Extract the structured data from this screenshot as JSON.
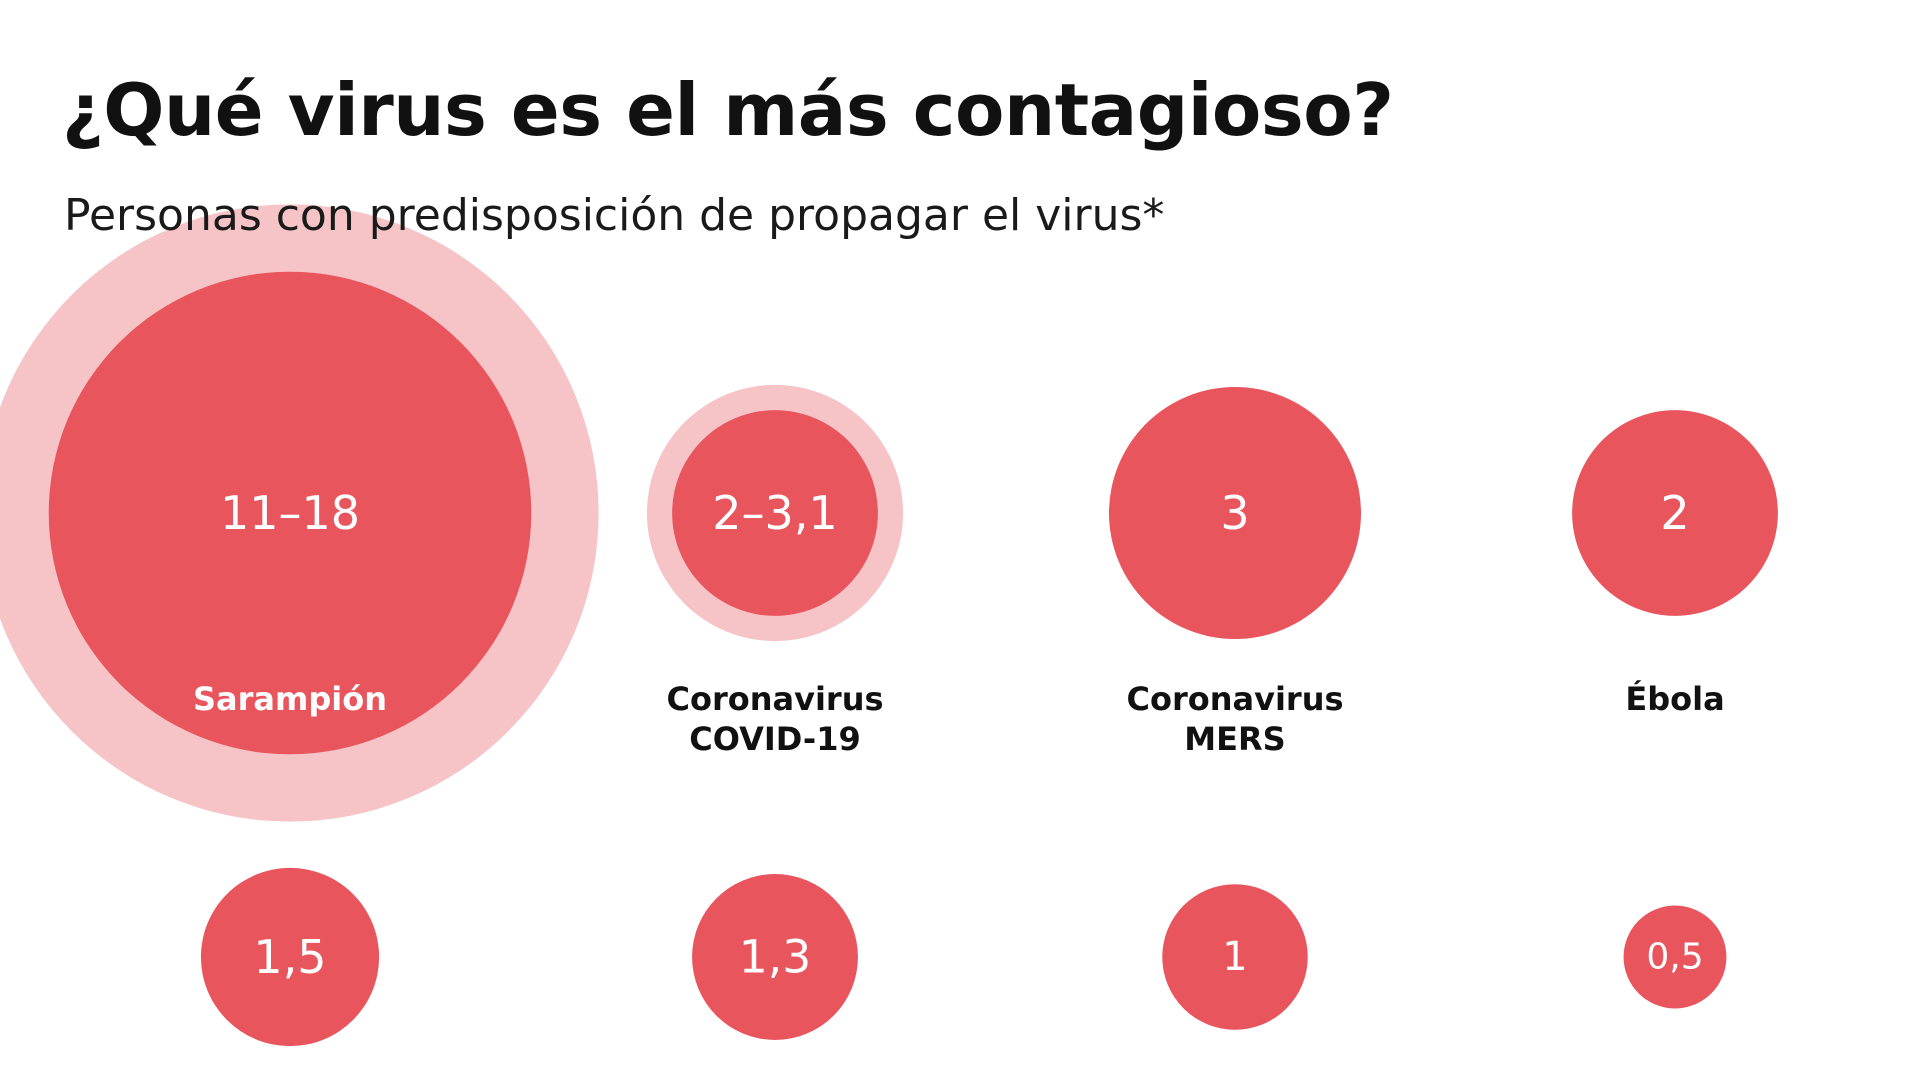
{
  "title": "¿Qué virus es el más contagioso?",
  "subtitle": "Personas con predisposición de propagar el virus*",
  "colors": {
    "bubble": "#e8555c",
    "range_halo": "#f6c4c6",
    "value_text": "#ffffff",
    "label_text": "#111111"
  },
  "chart_data": {
    "type": "bubble",
    "title": "¿Qué virus es el más contagioso?",
    "subtitle": "Personas con predisposición de propagar el virus*",
    "items": [
      {
        "name": [
          "Sarampión"
        ],
        "value_label": "11–18",
        "min": 11,
        "max": 18
      },
      {
        "name": [
          "Coronavirus",
          "COVID-19"
        ],
        "value_label": "2–3,1",
        "min": 2,
        "max": 3.1
      },
      {
        "name": [
          "Coronavirus",
          "MERS"
        ],
        "value_label": "3",
        "min": 3,
        "max": 3
      },
      {
        "name": [
          "Ébola"
        ],
        "value_label": "2",
        "min": 2,
        "max": 2
      },
      {
        "name": [],
        "value_label": "1,5",
        "min": 1.5,
        "max": 1.5
      },
      {
        "name": [],
        "value_label": "1,3",
        "min": 1.3,
        "max": 1.3
      },
      {
        "name": [],
        "value_label": "1",
        "min": 1,
        "max": 1
      },
      {
        "name": [],
        "value_label": "0,5",
        "min": 0.5,
        "max": 0.5
      }
    ]
  }
}
